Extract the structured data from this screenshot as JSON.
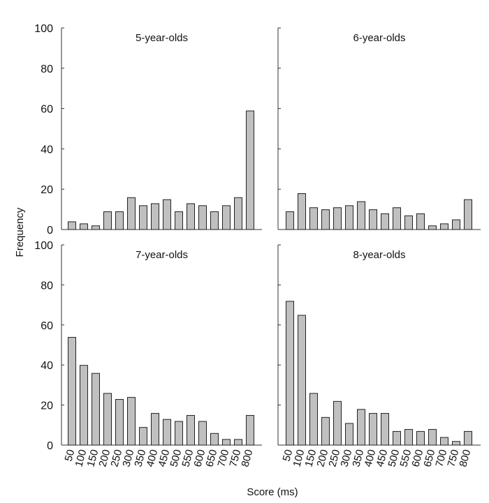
{
  "chart_data": {
    "type": "bar",
    "xlabel": "Score (ms)",
    "ylabel": "Frequency",
    "ylim": [
      0,
      100
    ],
    "yticks": [
      0,
      20,
      40,
      60,
      80,
      100
    ],
    "grid": false,
    "bar_color": "#c0c0c0",
    "edge_color": "#222222",
    "categories": [
      "50",
      "100",
      "150",
      "200",
      "250",
      "300",
      "350",
      "400",
      "450",
      "500",
      "550",
      "600",
      "650",
      "700",
      "750",
      "800"
    ],
    "panels": [
      {
        "title": "5-year-olds",
        "values": [
          4,
          3,
          2,
          9,
          9,
          16,
          12,
          13,
          15,
          9,
          13,
          12,
          9,
          12,
          16,
          59
        ]
      },
      {
        "title": "6-year-olds",
        "values": [
          9,
          18,
          11,
          10,
          11,
          12,
          14,
          10,
          8,
          11,
          7,
          8,
          2,
          3,
          5,
          15
        ]
      },
      {
        "title": "7-year-olds",
        "values": [
          54,
          40,
          36,
          26,
          23,
          24,
          9,
          16,
          13,
          12,
          15,
          12,
          6,
          3,
          3,
          15
        ]
      },
      {
        "title": "8-year-olds",
        "values": [
          72,
          65,
          26,
          14,
          22,
          11,
          18,
          16,
          16,
          7,
          8,
          7,
          8,
          4,
          2,
          7
        ]
      }
    ]
  }
}
